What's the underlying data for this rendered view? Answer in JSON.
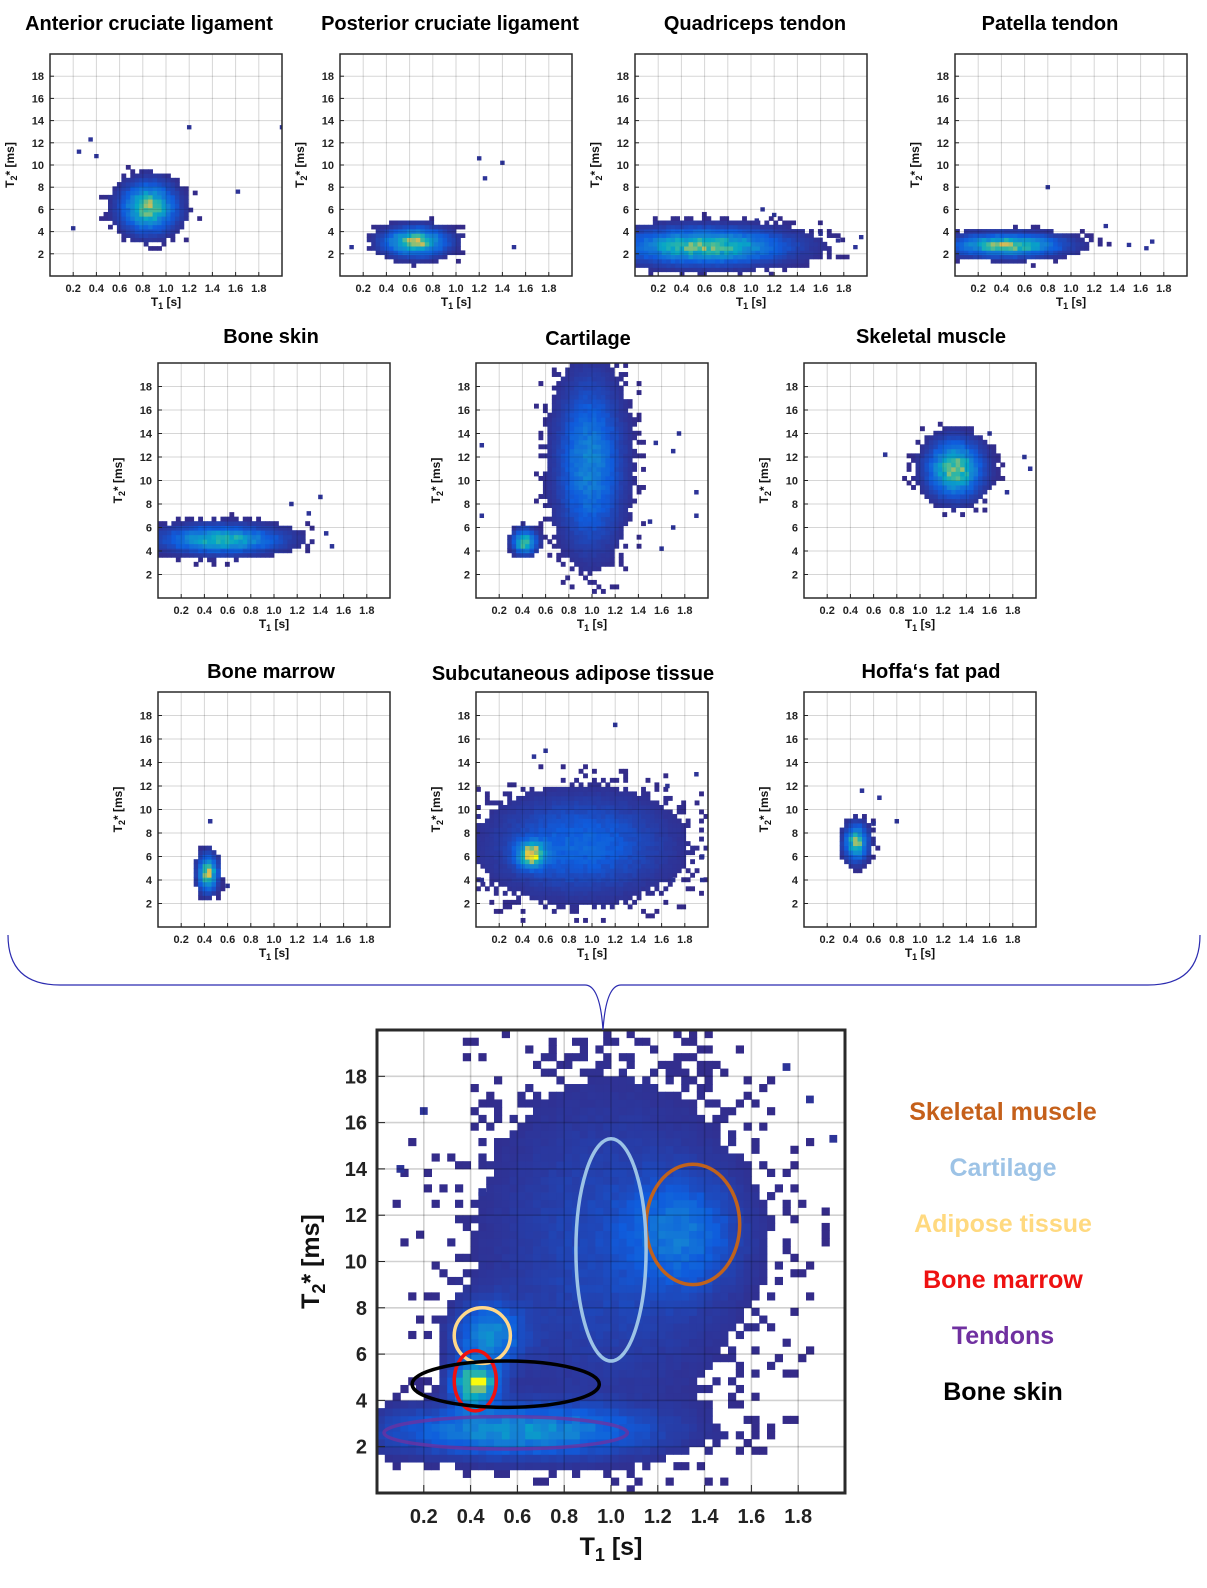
{
  "chart_data": [
    {
      "type": "heatmap",
      "title": "Anterior cruciate ligament",
      "xlabel": "T1 [s]",
      "ylabel": "T2* [ms]",
      "xlim": [
        0,
        2
      ],
      "ylim": [
        0,
        20
      ],
      "xticks": [
        "0.2",
        "0.4",
        "0.6",
        "0.8",
        "1.0",
        "1.2",
        "1.4",
        "1.6",
        "1.8"
      ],
      "yticks": [
        "2",
        "4",
        "6",
        "8",
        "10",
        "12",
        "14",
        "16",
        "18"
      ],
      "grid": true,
      "clusters": [
        {
          "x": 0.85,
          "y": 6.2,
          "sx": 0.14,
          "sy": 1.3,
          "peak": 0.85
        }
      ],
      "outliers": [
        [
          0.25,
          11.2
        ],
        [
          0.4,
          10.8
        ],
        [
          1.2,
          13.4
        ],
        [
          1.62,
          7.6
        ],
        [
          2.0,
          13.4
        ],
        [
          0.35,
          12.3
        ],
        [
          0.2,
          4.3
        ]
      ]
    },
    {
      "type": "heatmap",
      "title": "Posterior cruciate ligament",
      "xlabel": "T1 [s]",
      "ylabel": "T2* [ms]",
      "xlim": [
        0,
        2
      ],
      "ylim": [
        0,
        20
      ],
      "xticks": [
        "0.2",
        "0.4",
        "0.6",
        "0.8",
        "1.0",
        "1.2",
        "1.4",
        "1.6",
        "1.8"
      ],
      "yticks": [
        "2",
        "4",
        "6",
        "8",
        "10",
        "12",
        "14",
        "16",
        "18"
      ],
      "grid": true,
      "clusters": [
        {
          "x": 0.65,
          "y": 3.1,
          "sx": 0.16,
          "sy": 0.75,
          "peak": 0.9
        }
      ],
      "outliers": [
        [
          1.2,
          10.6
        ],
        [
          1.4,
          10.2
        ],
        [
          1.25,
          8.8
        ],
        [
          1.5,
          2.6
        ],
        [
          0.1,
          2.6
        ]
      ]
    },
    {
      "type": "heatmap",
      "title": "Quadriceps tendon",
      "xlabel": "T1 [s]",
      "ylabel": "T2* [ms]",
      "xlim": [
        0,
        2
      ],
      "ylim": [
        0,
        20
      ],
      "xticks": [
        "0.2",
        "0.4",
        "0.6",
        "0.8",
        "1.0",
        "1.2",
        "1.4",
        "1.6",
        "1.8"
      ],
      "yticks": [
        "2",
        "4",
        "6",
        "8",
        "10",
        "12",
        "14",
        "16",
        "18"
      ],
      "grid": true,
      "clusters": [
        {
          "x": 0.6,
          "y": 2.7,
          "sx": 0.42,
          "sy": 0.95,
          "peak": 0.8
        }
      ],
      "outliers": [
        [
          1.05,
          5.0
        ],
        [
          1.1,
          6.0
        ],
        [
          1.2,
          5.5
        ],
        [
          1.6,
          3.8
        ],
        [
          1.75,
          3.2
        ],
        [
          1.9,
          2.6
        ],
        [
          1.95,
          3.5
        ]
      ]
    },
    {
      "type": "heatmap",
      "title": "Patella tendon",
      "xlabel": "T1 [s]",
      "ylabel": "T2* [ms]",
      "xlim": [
        0,
        2
      ],
      "ylim": [
        0,
        20
      ],
      "xticks": [
        "0.2",
        "0.4",
        "0.6",
        "0.8",
        "1.0",
        "1.2",
        "1.4",
        "1.6",
        "1.8"
      ],
      "yticks": [
        "2",
        "4",
        "6",
        "8",
        "10",
        "12",
        "14",
        "16",
        "18"
      ],
      "grid": true,
      "clusters": [
        {
          "x": 0.45,
          "y": 2.8,
          "sx": 0.28,
          "sy": 0.6,
          "peak": 0.85
        }
      ],
      "outliers": [
        [
          0.8,
          8.0
        ],
        [
          1.3,
          4.5
        ],
        [
          1.5,
          2.8
        ],
        [
          1.65,
          2.5
        ],
        [
          1.7,
          3.1
        ]
      ]
    },
    {
      "type": "heatmap",
      "title": "Bone skin",
      "xlabel": "T1 [s]",
      "ylabel": "T2* [ms]",
      "xlim": [
        0,
        2
      ],
      "ylim": [
        0,
        20
      ],
      "xticks": [
        "0.2",
        "0.4",
        "0.6",
        "0.8",
        "1.0",
        "1.2",
        "1.4",
        "1.6",
        "1.8"
      ],
      "yticks": [
        "2",
        "4",
        "6",
        "8",
        "10",
        "12",
        "14",
        "16",
        "18"
      ],
      "grid": true,
      "clusters": [
        {
          "x": 0.55,
          "y": 5.0,
          "sx": 0.3,
          "sy": 0.7,
          "peak": 0.7
        }
      ],
      "outliers": [
        [
          1.4,
          8.6
        ],
        [
          1.5,
          4.4
        ],
        [
          1.3,
          7.2
        ],
        [
          1.45,
          5.5
        ],
        [
          1.15,
          8.0
        ]
      ]
    },
    {
      "type": "heatmap",
      "title": "Cartilage",
      "xlabel": "T1 [s]",
      "ylabel": "T2* [ms]",
      "xlim": [
        0,
        2
      ],
      "ylim": [
        0,
        20
      ],
      "xticks": [
        "0.2",
        "0.4",
        "0.6",
        "0.8",
        "1.0",
        "1.2",
        "1.4",
        "1.6",
        "1.8"
      ],
      "yticks": [
        "2",
        "4",
        "6",
        "8",
        "10",
        "12",
        "14",
        "16",
        "18"
      ],
      "grid": true,
      "clusters": [
        {
          "x": 0.98,
          "y": 11.5,
          "sx": 0.17,
          "sy": 4.2,
          "peak": 0.45
        },
        {
          "x": 0.42,
          "y": 4.8,
          "sx": 0.06,
          "sy": 0.6,
          "peak": 0.85
        }
      ],
      "outliers": [
        [
          1.75,
          14.0
        ],
        [
          1.55,
          13.2
        ],
        [
          1.9,
          9.0
        ],
        [
          1.9,
          7.0
        ],
        [
          1.7,
          6.0
        ],
        [
          1.6,
          4.2
        ],
        [
          1.7,
          12.5
        ],
        [
          0.05,
          13.0
        ],
        [
          0.05,
          7.0
        ],
        [
          1.5,
          6.5
        ]
      ]
    },
    {
      "type": "heatmap",
      "title": "Skeletal muscle",
      "xlabel": "T1 [s]",
      "ylabel": "T2* [ms]",
      "xlim": [
        0,
        2
      ],
      "ylim": [
        0,
        20
      ],
      "xticks": [
        "0.2",
        "0.4",
        "0.6",
        "0.8",
        "1.0",
        "1.2",
        "1.4",
        "1.6",
        "1.8"
      ],
      "yticks": [
        "2",
        "4",
        "6",
        "8",
        "10",
        "12",
        "14",
        "16",
        "18"
      ],
      "grid": true,
      "clusters": [
        {
          "x": 1.3,
          "y": 11.0,
          "sx": 0.14,
          "sy": 1.4,
          "peak": 0.85
        }
      ],
      "outliers": [
        [
          0.7,
          12.2
        ],
        [
          1.9,
          12.0
        ],
        [
          1.75,
          9.0
        ],
        [
          1.95,
          11.0
        ],
        [
          1.6,
          14.0
        ]
      ]
    },
    {
      "type": "heatmap",
      "title": "Bone marrow",
      "xlabel": "T1 [s]",
      "ylabel": "T2* [ms]",
      "xlim": [
        0,
        2
      ],
      "ylim": [
        0,
        20
      ],
      "xticks": [
        "0.2",
        "0.4",
        "0.6",
        "0.8",
        "1.0",
        "1.2",
        "1.4",
        "1.6",
        "1.8"
      ],
      "yticks": [
        "2",
        "4",
        "6",
        "8",
        "10",
        "12",
        "14",
        "16",
        "18"
      ],
      "grid": true,
      "clusters": [
        {
          "x": 0.43,
          "y": 4.6,
          "sx": 0.05,
          "sy": 0.9,
          "peak": 0.95
        }
      ],
      "outliers": [
        [
          0.45,
          9.0
        ],
        [
          0.6,
          3.5
        ]
      ]
    },
    {
      "type": "heatmap",
      "title": "Subcutaneous adipose tissue",
      "xlabel": "T1 [s]",
      "ylabel": "T2* [ms]",
      "xlim": [
        0,
        2
      ],
      "ylim": [
        0,
        20
      ],
      "xticks": [
        "0.2",
        "0.4",
        "0.6",
        "0.8",
        "1.0",
        "1.2",
        "1.4",
        "1.6",
        "1.8"
      ],
      "yticks": [
        "2",
        "4",
        "6",
        "8",
        "10",
        "12",
        "14",
        "16",
        "18"
      ],
      "grid": true,
      "clusters": [
        {
          "x": 0.48,
          "y": 6.2,
          "sx": 0.08,
          "sy": 0.7,
          "peak": 0.9
        },
        {
          "x": 0.9,
          "y": 7.0,
          "sx": 0.45,
          "sy": 2.5,
          "peak": 0.3
        }
      ],
      "outliers": [
        [
          1.2,
          17.2
        ],
        [
          0.6,
          15.0
        ],
        [
          1.65,
          12.0
        ],
        [
          1.9,
          13.0
        ],
        [
          1.95,
          6.0
        ],
        [
          1.95,
          4.0
        ],
        [
          0.05,
          4.0
        ],
        [
          0.5,
          14.5
        ],
        [
          1.7,
          4.0
        ]
      ]
    },
    {
      "type": "heatmap",
      "title": "Hoffa‘s fat pad",
      "xlabel": "T1 [s]",
      "ylabel": "T2* [ms]",
      "xlim": [
        0,
        2
      ],
      "ylim": [
        0,
        20
      ],
      "xticks": [
        "0.2",
        "0.4",
        "0.6",
        "0.8",
        "1.0",
        "1.2",
        "1.4",
        "1.6",
        "1.8"
      ],
      "yticks": [
        "2",
        "4",
        "6",
        "8",
        "10",
        "12",
        "14",
        "16",
        "18"
      ],
      "grid": true,
      "clusters": [
        {
          "x": 0.45,
          "y": 7.2,
          "sx": 0.06,
          "sy": 0.9,
          "peak": 0.85
        }
      ],
      "outliers": [
        [
          0.5,
          11.6
        ],
        [
          0.65,
          11.0
        ],
        [
          0.8,
          9.0
        ],
        [
          0.6,
          8.8
        ]
      ]
    },
    {
      "type": "heatmap",
      "title": "",
      "xlabel": "T1 [s]",
      "ylabel": "T2* [ms]",
      "xlim": [
        0,
        2
      ],
      "ylim": [
        0,
        20
      ],
      "xticks": [
        "0.2",
        "0.4",
        "0.6",
        "0.8",
        "1.0",
        "1.2",
        "1.4",
        "1.6",
        "1.8"
      ],
      "yticks": [
        "2",
        "4",
        "6",
        "8",
        "10",
        "12",
        "14",
        "16",
        "18"
      ],
      "grid": true,
      "clusters": [
        {
          "x": 0.42,
          "y": 4.7,
          "sx": 0.06,
          "sy": 0.6,
          "peak": 0.95
        },
        {
          "x": 0.48,
          "y": 6.8,
          "sx": 0.09,
          "sy": 0.9,
          "peak": 0.45
        },
        {
          "x": 0.6,
          "y": 2.7,
          "sx": 0.35,
          "sy": 0.7,
          "peak": 0.5
        },
        {
          "x": 1.3,
          "y": 11.2,
          "sx": 0.15,
          "sy": 1.5,
          "peak": 0.3
        },
        {
          "x": 1.0,
          "y": 10.5,
          "sx": 0.35,
          "sy": 4.5,
          "peak": 0.15
        }
      ],
      "outliers": [
        [
          1.75,
          18.4
        ],
        [
          1.95,
          15.3
        ],
        [
          0.1,
          14.0
        ],
        [
          0.2,
          16.5
        ],
        [
          1.85,
          17.0
        ],
        [
          0.45,
          13.0
        ]
      ],
      "regions": [
        {
          "label": "Skeletal muscle",
          "x": 1.35,
          "y": 11.6,
          "rx": 0.2,
          "ry": 2.6,
          "color": "#c0621c"
        },
        {
          "label": "Cartilage",
          "x": 1.0,
          "y": 10.5,
          "rx": 0.15,
          "ry": 4.8,
          "color": "#9cc3e6"
        },
        {
          "label": "Adipose tissue",
          "x": 0.45,
          "y": 6.8,
          "rx": 0.12,
          "ry": 1.2,
          "color": "#ffd88a"
        },
        {
          "label": "Bone marrow",
          "x": 0.42,
          "y": 4.85,
          "rx": 0.09,
          "ry": 1.3,
          "color": "#ee1111"
        },
        {
          "label": "Tendons",
          "x": 0.55,
          "y": 2.6,
          "rx": 0.52,
          "ry": 0.7,
          "color": "#7030a0"
        },
        {
          "label": "Bone skin",
          "x": 0.55,
          "y": 4.7,
          "rx": 0.4,
          "ry": 1.0,
          "color": "#000000"
        }
      ]
    }
  ],
  "legend": [
    {
      "label": "Skeletal muscle",
      "color": "#c5601a"
    },
    {
      "label": "Cartilage",
      "color": "#9dc3e6"
    },
    {
      "label": "Adipose tissue",
      "color": "#ffd97f"
    },
    {
      "label": "Bone marrow",
      "color": "#ee1111"
    },
    {
      "label": "Tendons",
      "color": "#7030a0"
    },
    {
      "label": "Bone skin",
      "color": "#000000"
    }
  ]
}
